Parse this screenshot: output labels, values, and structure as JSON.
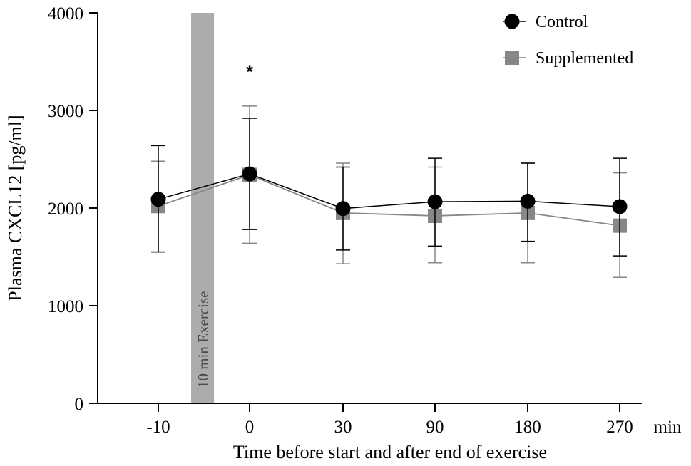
{
  "chart_data": {
    "type": "line",
    "ylabel": "Plasma CXCL12 [pg/ml]",
    "xlabel": "Time before start and after end of exercise",
    "x_unit_label": "min",
    "categories": [
      "-10",
      "0",
      "30",
      "90",
      "180",
      "270"
    ],
    "ylim": [
      0,
      4000
    ],
    "yticks": [
      0,
      1000,
      2000,
      3000,
      4000
    ],
    "ytick_labels": [
      "0",
      "1000",
      "2000",
      "3000",
      "4000"
    ],
    "grid": false,
    "legend_position": "top-right",
    "series": [
      {
        "name": "Control",
        "color": "#000000",
        "marker": "circle",
        "values": [
          2090,
          2350,
          1995,
          2065,
          2070,
          2015
        ],
        "error_upper": [
          2640,
          2920,
          2420,
          2510,
          2460,
          2510
        ],
        "error_lower": [
          1550,
          1780,
          1570,
          1610,
          1660,
          1510
        ]
      },
      {
        "name": "Supplemented",
        "color": "#878787",
        "marker": "square",
        "values": [
          2020,
          2340,
          1950,
          1920,
          1950,
          1820
        ],
        "error_upper": [
          2480,
          3045,
          2460,
          2420,
          2460,
          2360
        ],
        "error_lower": [
          1550,
          1640,
          1430,
          1440,
          1440,
          1290
        ]
      }
    ],
    "annotations": [
      {
        "text": "*",
        "category": "0",
        "value": 3450
      }
    ],
    "exercise_band": {
      "label": "10 min Exercise",
      "color": "#acacac"
    }
  }
}
